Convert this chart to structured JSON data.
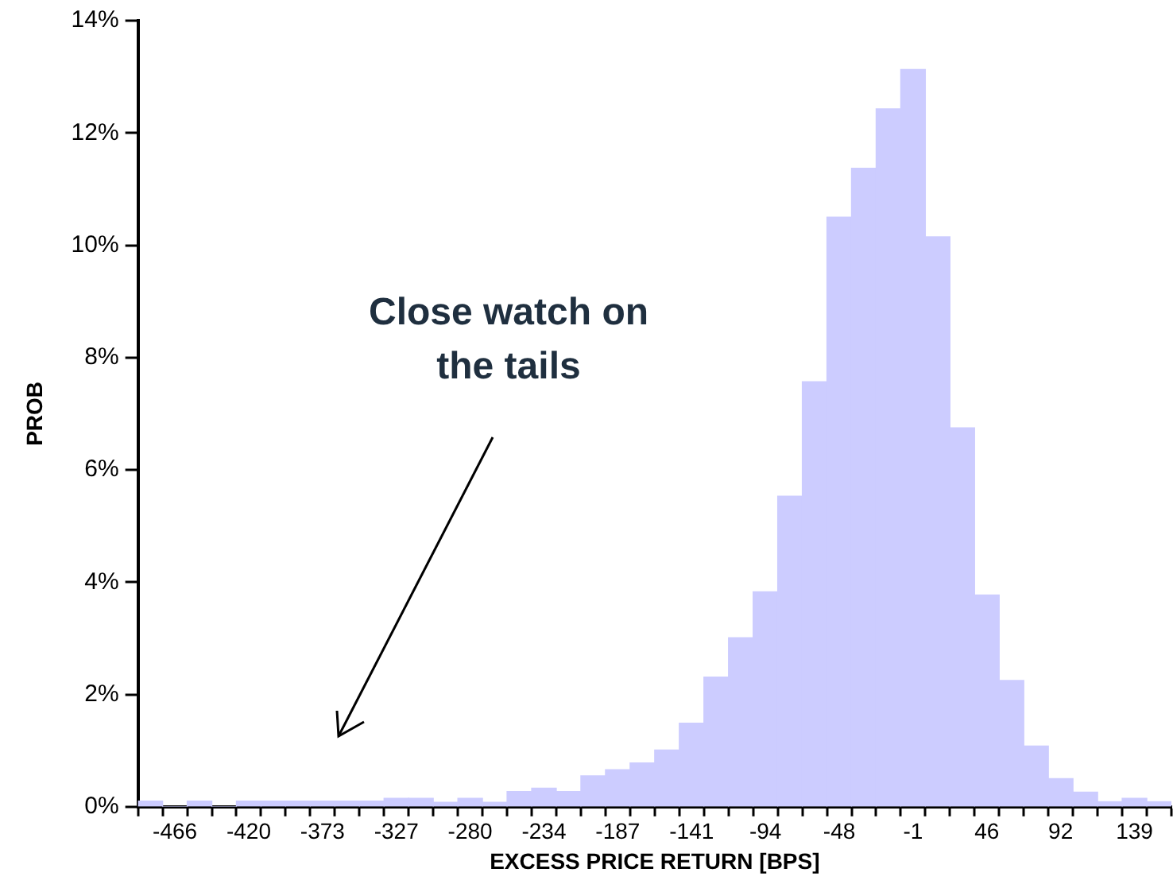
{
  "chart_data": {
    "type": "bar",
    "xlabel": "EXCESS PRICE RETURN [BPS]",
    "ylabel": "PROB",
    "categories": [
      null,
      "-466",
      null,
      null,
      "-420",
      null,
      null,
      "-373",
      null,
      null,
      "-327",
      null,
      null,
      "-280",
      null,
      null,
      "-234",
      null,
      null,
      "-187",
      null,
      null,
      "-141",
      null,
      null,
      "-94",
      null,
      null,
      "-48",
      null,
      null,
      "-1",
      null,
      null,
      "46",
      null,
      null,
      "92",
      null,
      null,
      "139",
      null
    ],
    "values": [
      0.1,
      0,
      0.1,
      0,
      0.1,
      0.1,
      0.1,
      0.1,
      0.1,
      0.1,
      0.15,
      0.15,
      0.08,
      0.15,
      0.08,
      0.27,
      0.33,
      0.27,
      0.55,
      0.66,
      0.78,
      1.01,
      1.49,
      2.31,
      3.01,
      3.83,
      5.53,
      7.57,
      10.5,
      11.37,
      12.43,
      13.13,
      10.15,
      6.75,
      3.77,
      2.25,
      1.08,
      0.5,
      0.26,
      0.09,
      0.15,
      0.09
    ],
    "color": "#ccccff",
    "ylim": [
      0,
      14
    ],
    "yticks": [
      {
        "value": 0,
        "label": "0%"
      },
      {
        "value": 2,
        "label": "2%"
      },
      {
        "value": 4,
        "label": "4%"
      },
      {
        "value": 6,
        "label": "6%"
      },
      {
        "value": 8,
        "label": "8%"
      },
      {
        "value": 10,
        "label": "10%"
      },
      {
        "value": 12,
        "label": "12%"
      },
      {
        "value": 14,
        "label": "14%"
      }
    ],
    "annotations": [
      "Close watch on the tails"
    ],
    "legend": false
  }
}
